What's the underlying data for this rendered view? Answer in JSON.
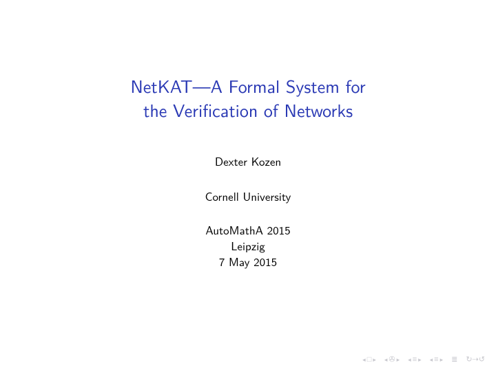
{
  "title": {
    "line1": "NetKAT—A Formal System for",
    "line2": "the Verification of Networks",
    "color": "#2a39b4",
    "fontsize": 26
  },
  "author": "Dexter Kozen",
  "affiliation": "Cornell University",
  "venue": {
    "conference": "AutoMathA 2015",
    "location": "Leipzig",
    "date": "7 May 2015"
  },
  "body_color": "#000000",
  "body_fontsize": 17,
  "background_color": "#ffffff",
  "nav": {
    "color": "#c9c9cf",
    "groups": [
      {
        "left": "◂",
        "icon": "□",
        "right": "▸"
      },
      {
        "left": "◂",
        "icon": "✇",
        "right": "▸"
      },
      {
        "left": "◂",
        "icon": "≡",
        "right": "▸"
      },
      {
        "left": "◂",
        "icon": "≡",
        "right": "▸"
      }
    ],
    "mode": "≣",
    "reload": "↻⇢↺"
  }
}
